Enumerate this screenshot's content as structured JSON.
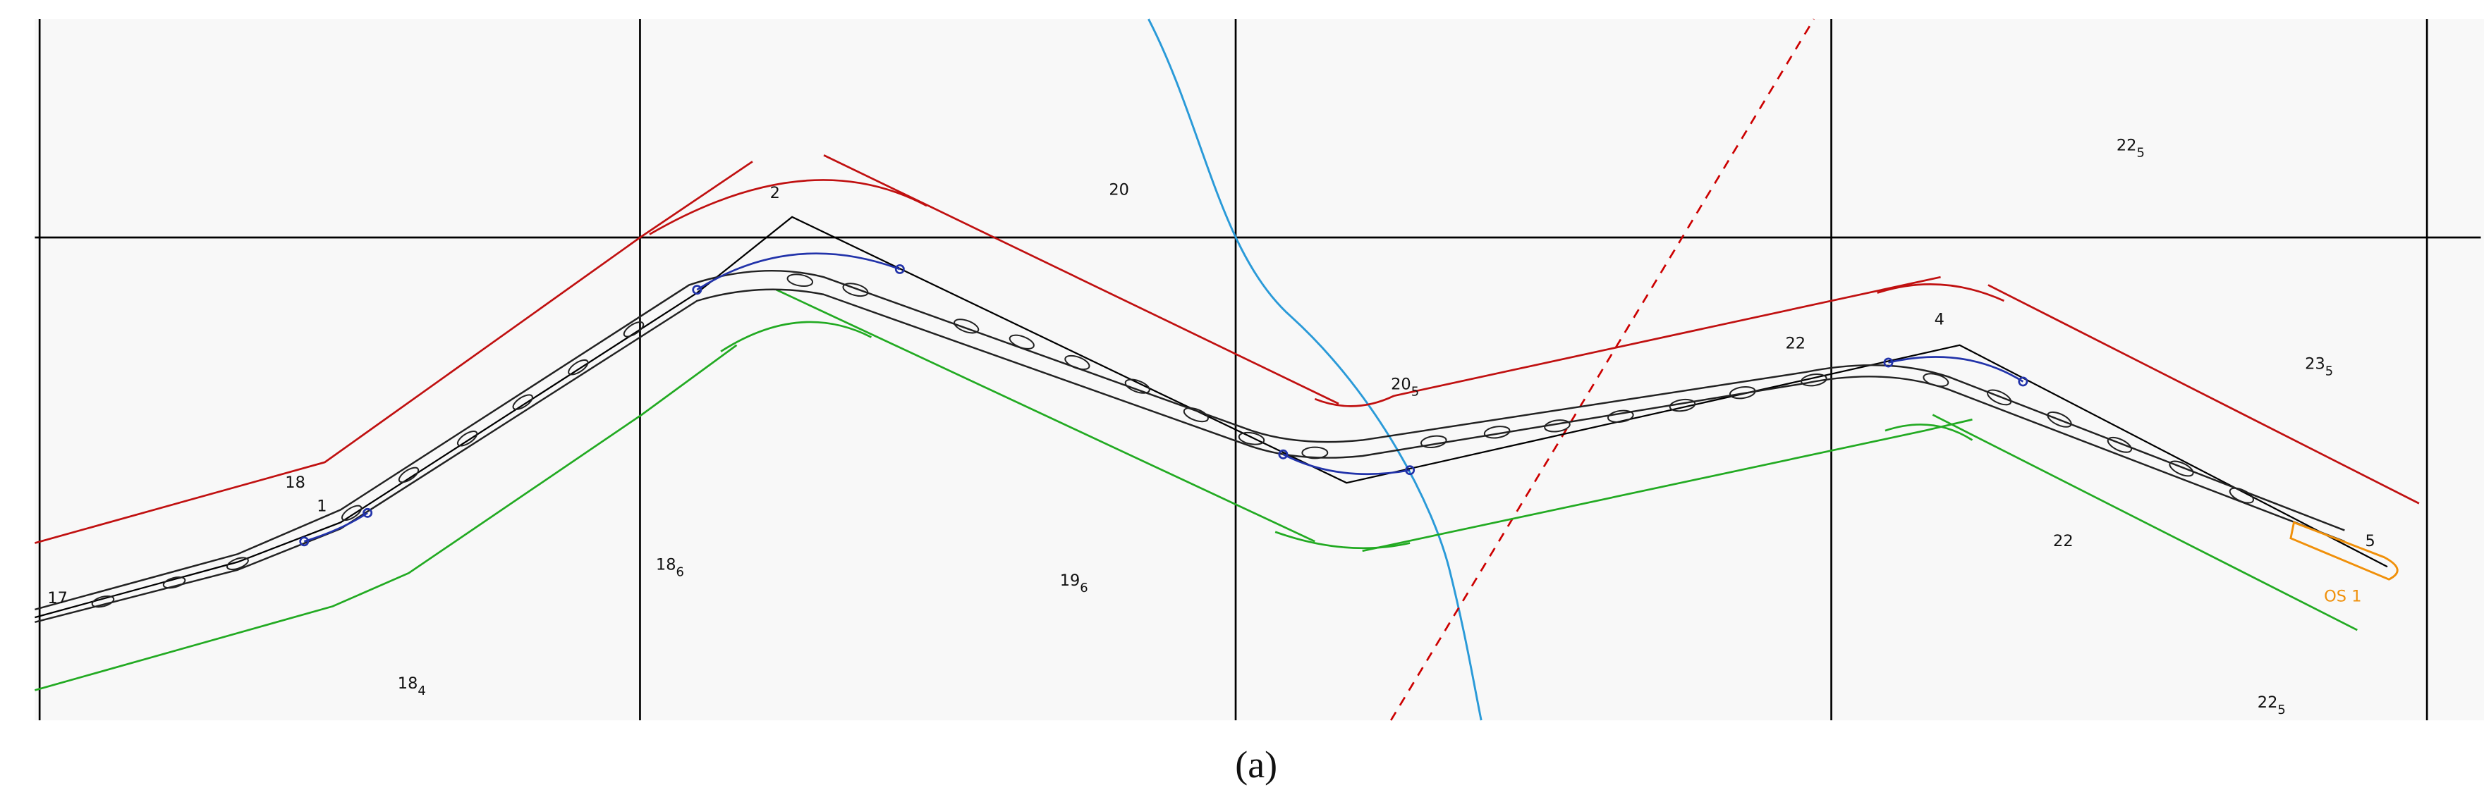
{
  "waypoints": [
    "17",
    "18",
    "1",
    "2",
    "4",
    "5"
  ],
  "soundings": [
    {
      "depth": "18",
      "sub": "4"
    },
    {
      "depth": "18",
      "sub": "6"
    },
    {
      "depth": "19",
      "sub": "6"
    },
    {
      "depth": "20"
    },
    {
      "depth": "20",
      "sub": "5"
    },
    {
      "depth": "22"
    },
    {
      "depth": "22",
      "sub": "5"
    },
    {
      "depth": "23",
      "sub": "5"
    },
    {
      "depth": "22"
    },
    {
      "depth": "22",
      "sub": "5"
    }
  ],
  "vessel": "OS 1",
  "caption": "(a)"
}
